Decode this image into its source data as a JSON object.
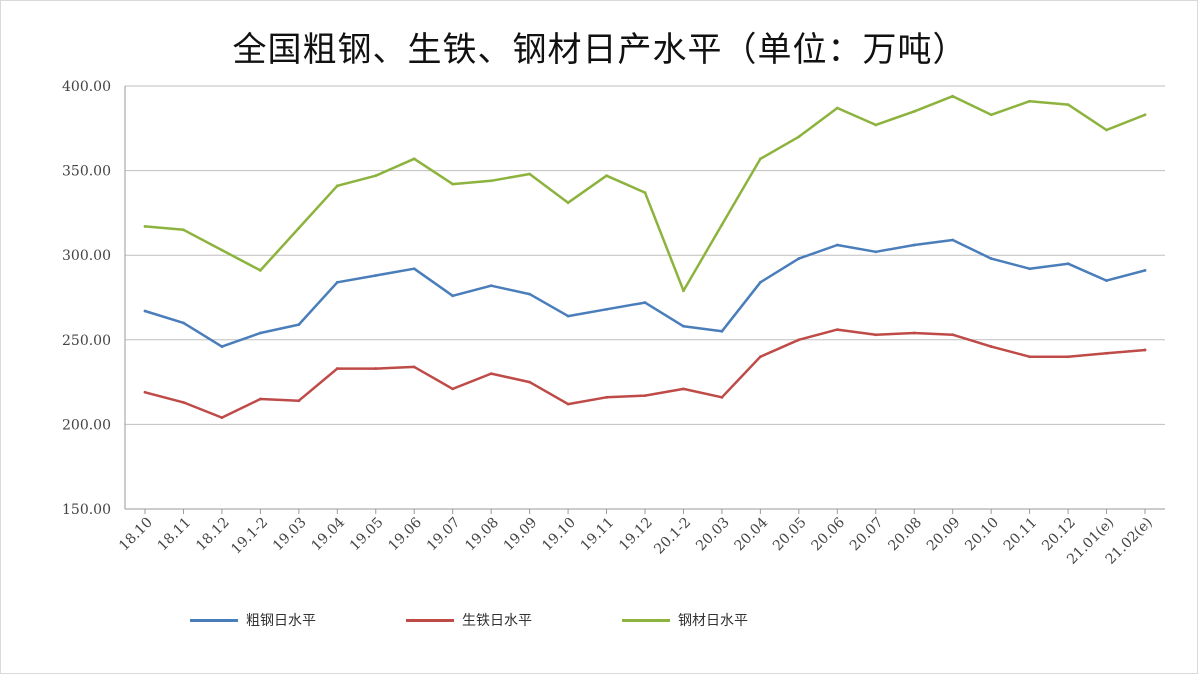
{
  "chart_data": {
    "type": "line",
    "title": "全国粗钢、生铁、钢材日产水平（单位：万吨）",
    "ylim": [
      150,
      400
    ],
    "yticks": [
      "150.00",
      "200.00",
      "250.00",
      "300.00",
      "350.00",
      "400.00"
    ],
    "ytick_values": [
      150,
      200,
      250,
      300,
      350,
      400
    ],
    "grid": true,
    "legend_position": "bottom",
    "categories": [
      "18.10",
      "18.11",
      "18.12",
      "19.1-2",
      "19.03",
      "19.04",
      "19.05",
      "19.06",
      "19.07",
      "19.08",
      "19.09",
      "19.10",
      "19.11",
      "19.12",
      "20.1-2",
      "20.03",
      "20.04",
      "20.05",
      "20.06",
      "20.07",
      "20.08",
      "20.09",
      "20.10",
      "20.11",
      "20.12",
      "21.01(e)",
      "21.02(e)"
    ],
    "series": [
      {
        "name": "粗钢日水平",
        "color": "#4a7ebb",
        "values": [
          267,
          260,
          246,
          254,
          259,
          284,
          288,
          292,
          276,
          282,
          277,
          264,
          268,
          272,
          258,
          255,
          284,
          298,
          306,
          302,
          306,
          309,
          298,
          292,
          295,
          285,
          291
        ]
      },
      {
        "name": "生铁日水平",
        "color": "#be4b48",
        "values": [
          219,
          213,
          204,
          215,
          214,
          233,
          233,
          234,
          221,
          230,
          225,
          212,
          216,
          217,
          221,
          216,
          240,
          250,
          256,
          253,
          254,
          253,
          246,
          240,
          240,
          242,
          244
        ]
      },
      {
        "name": "钢材日水平",
        "color": "#8db33f",
        "values": [
          317,
          315,
          303,
          291,
          316,
          341,
          347,
          357,
          342,
          344,
          348,
          331,
          347,
          337,
          279,
          318,
          357,
          370,
          387,
          377,
          385,
          394,
          383,
          391,
          389,
          374,
          383
        ]
      }
    ]
  }
}
